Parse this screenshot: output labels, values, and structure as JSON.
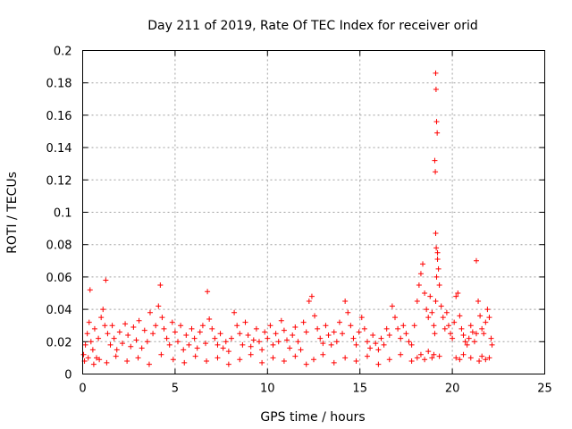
{
  "chart_data": {
    "type": "scatter",
    "title": "Day 211 of 2019, Rate Of TEC Index for receiver orid",
    "xlabel": "GPS time / hours",
    "ylabel": "ROTI / TECUs",
    "xlim": [
      0,
      25
    ],
    "ylim": [
      0,
      0.2
    ],
    "x_ticks": [
      0,
      5,
      10,
      15,
      20,
      25
    ],
    "y_ticks": [
      0,
      0.02,
      0.04,
      0.06,
      0.08,
      0.1,
      0.12,
      0.14,
      0.16,
      0.18,
      0.2
    ],
    "x_tick_labels": [
      "0",
      "5",
      "10",
      "15",
      "20",
      "25"
    ],
    "y_tick_labels": [
      "0",
      "0.02",
      "0.04",
      "0.06",
      "0.08",
      "0.1",
      "0.12",
      "0.14",
      "0.16",
      "0.18",
      "0.2"
    ],
    "grid": true,
    "marker": "+",
    "color": "#ff0000",
    "series": [
      {
        "x": [
          0.05,
          0.15,
          0.25,
          0.35,
          0.4,
          0.45,
          0.55,
          0.65,
          0.75,
          0.85,
          1.0,
          1.1,
          1.2,
          1.25,
          1.35,
          1.5,
          1.6,
          1.7,
          1.85,
          2.0,
          2.15,
          2.3,
          2.45,
          2.6,
          2.75,
          2.9,
          3.05,
          3.2,
          3.35,
          3.5,
          3.65,
          3.8,
          3.95,
          4.1,
          4.2,
          4.3,
          4.4,
          4.55,
          4.7,
          4.85,
          5.0,
          5.15,
          5.3,
          5.45,
          5.6,
          5.75,
          5.9,
          6.05,
          6.2,
          6.35,
          6.5,
          6.65,
          6.75,
          6.85,
          7.0,
          7.15,
          7.3,
          7.45,
          7.6,
          7.75,
          7.9,
          8.05,
          8.2,
          8.35,
          8.5,
          8.65,
          8.8,
          8.95,
          9.1,
          9.25,
          9.4,
          9.55,
          9.7,
          9.85,
          10.0,
          10.15,
          10.3,
          10.45,
          10.6,
          10.75,
          10.9,
          11.05,
          11.2,
          11.35,
          11.5,
          11.65,
          11.8,
          11.95,
          12.1,
          12.25,
          12.4,
          12.55,
          12.7,
          12.85,
          13.0,
          13.15,
          13.3,
          13.45,
          13.6,
          13.75,
          13.9,
          14.05,
          14.2,
          14.35,
          14.5,
          14.65,
          14.8,
          14.95,
          15.1,
          15.25,
          15.4,
          15.55,
          15.7,
          15.85,
          16.0,
          16.15,
          16.3,
          16.45,
          16.6,
          16.75,
          16.9,
          17.05,
          17.2,
          17.35,
          17.5,
          17.65,
          17.8,
          17.95,
          18.1,
          18.2,
          18.3,
          18.4,
          18.5,
          18.6,
          18.7,
          18.8,
          18.9,
          19.0,
          19.05,
          19.1,
          19.15,
          19.2,
          19.3,
          19.4,
          19.5,
          19.6,
          19.7,
          19.8,
          19.9,
          20.0,
          20.1,
          20.2,
          20.3,
          20.4,
          20.5,
          20.6,
          20.7,
          20.8,
          20.9,
          21.0,
          21.1,
          21.2,
          21.3,
          21.4,
          21.5,
          21.6,
          21.7,
          21.8,
          21.9,
          22.0,
          22.1,
          22.15,
          0.1,
          0.3,
          0.6,
          0.9,
          1.3,
          1.8,
          2.4,
          3.0,
          3.6,
          4.25,
          4.9,
          5.5,
          6.1,
          6.7,
          7.3,
          7.9,
          8.5,
          9.1,
          9.7,
          10.3,
          10.9,
          11.5,
          12.1,
          12.5,
          13.0,
          13.6,
          14.2,
          14.8,
          15.4,
          16.0,
          16.6,
          17.2,
          17.8,
          18.1,
          18.3,
          18.5,
          18.7,
          18.9,
          19.0,
          19.1,
          19.12,
          19.15,
          19.18,
          19.05,
          19.08,
          19.1,
          19.13,
          19.2,
          19.25,
          19.3,
          20.2,
          20.4,
          20.6,
          21.0,
          21.3,
          21.45,
          21.6,
          21.8,
          22.0
        ],
        "y": [
          0.012,
          0.018,
          0.025,
          0.032,
          0.052,
          0.02,
          0.015,
          0.028,
          0.01,
          0.022,
          0.035,
          0.04,
          0.03,
          0.058,
          0.025,
          0.018,
          0.03,
          0.022,
          0.015,
          0.026,
          0.019,
          0.031,
          0.024,
          0.017,
          0.029,
          0.021,
          0.033,
          0.016,
          0.027,
          0.02,
          0.038,
          0.025,
          0.03,
          0.042,
          0.055,
          0.035,
          0.028,
          0.022,
          0.018,
          0.032,
          0.026,
          0.02,
          0.03,
          0.015,
          0.024,
          0.018,
          0.028,
          0.022,
          0.016,
          0.026,
          0.03,
          0.019,
          0.051,
          0.034,
          0.028,
          0.022,
          0.018,
          0.025,
          0.016,
          0.02,
          0.014,
          0.022,
          0.038,
          0.03,
          0.025,
          0.018,
          0.032,
          0.024,
          0.017,
          0.021,
          0.028,
          0.02,
          0.015,
          0.026,
          0.022,
          0.03,
          0.018,
          0.025,
          0.02,
          0.033,
          0.027,
          0.021,
          0.016,
          0.024,
          0.029,
          0.02,
          0.015,
          0.032,
          0.026,
          0.045,
          0.048,
          0.036,
          0.028,
          0.022,
          0.019,
          0.03,
          0.024,
          0.018,
          0.026,
          0.02,
          0.032,
          0.025,
          0.045,
          0.038,
          0.03,
          0.022,
          0.018,
          0.026,
          0.035,
          0.028,
          0.02,
          0.016,
          0.024,
          0.019,
          0.015,
          0.022,
          0.018,
          0.028,
          0.024,
          0.042,
          0.035,
          0.028,
          0.022,
          0.03,
          0.025,
          0.02,
          0.018,
          0.03,
          0.045,
          0.055,
          0.062,
          0.068,
          0.05,
          0.04,
          0.035,
          0.048,
          0.038,
          0.03,
          0.025,
          0.045,
          0.06,
          0.075,
          0.055,
          0.042,
          0.035,
          0.028,
          0.038,
          0.03,
          0.025,
          0.022,
          0.032,
          0.048,
          0.05,
          0.036,
          0.028,
          0.024,
          0.02,
          0.018,
          0.022,
          0.03,
          0.026,
          0.02,
          0.025,
          0.045,
          0.036,
          0.028,
          0.025,
          0.032,
          0.04,
          0.035,
          0.022,
          0.018,
          0.008,
          0.01,
          0.006,
          0.009,
          0.007,
          0.011,
          0.008,
          0.01,
          0.006,
          0.012,
          0.009,
          0.007,
          0.011,
          0.008,
          0.01,
          0.006,
          0.009,
          0.012,
          0.007,
          0.01,
          0.008,
          0.011,
          0.006,
          0.009,
          0.012,
          0.007,
          0.01,
          0.008,
          0.011,
          0.006,
          0.009,
          0.012,
          0.008,
          0.01,
          0.012,
          0.009,
          0.014,
          0.01,
          0.012,
          0.186,
          0.176,
          0.156,
          0.149,
          0.132,
          0.125,
          0.087,
          0.078,
          0.071,
          0.065,
          0.011,
          0.01,
          0.009,
          0.012,
          0.01,
          0.07,
          0.008,
          0.011,
          0.009,
          0.01
        ]
      }
    ]
  }
}
